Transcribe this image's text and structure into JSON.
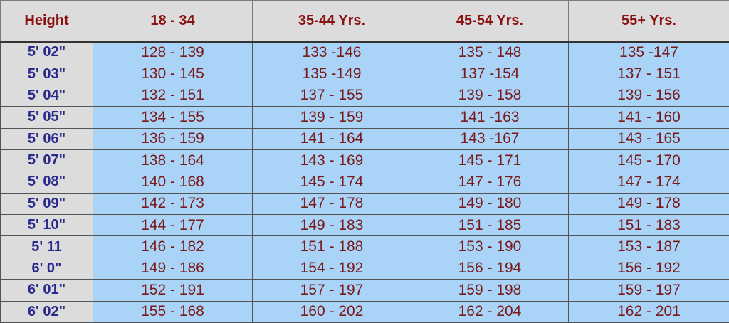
{
  "header": [
    "Height",
    "18 - 34",
    "35-44 Yrs.",
    "45-54 Yrs.",
    "55+ Yrs."
  ],
  "rows": [
    [
      "5' 02\"",
      "128 - 139",
      "133 -146",
      "135 - 148",
      "135 -147"
    ],
    [
      "5' 03\"",
      "130 - 145",
      "135 -149",
      "137 -154",
      "137 - 151"
    ],
    [
      "5' 04\"",
      "132 - 151",
      "137 - 155",
      "139 - 158",
      "139 - 156"
    ],
    [
      "5' 05\"",
      "134 - 155",
      "139 - 159",
      "141 -163",
      "141 - 160"
    ],
    [
      "5' 06\"",
      "136 - 159",
      "141 - 164",
      "143 -167",
      "143 - 165"
    ],
    [
      "5' 07\"",
      "138 - 164",
      "143 - 169",
      "145 - 171",
      "145 - 170"
    ],
    [
      "5' 08\"",
      "140 - 168",
      "145 - 174",
      "147 - 176",
      "147 - 174"
    ],
    [
      "5' 09\"",
      "142 - 173",
      "147 - 178",
      "149 - 180",
      "149 - 178"
    ],
    [
      "5' 10\"",
      "144 - 177",
      "149 - 183",
      "151 - 185",
      "151 - 183"
    ],
    [
      "5' 11",
      "146 - 182",
      "151 - 188",
      "153 - 190",
      "153 - 187"
    ],
    [
      "6' 0\"",
      "149 - 186",
      "154 - 192",
      "156 - 194",
      "156 - 192"
    ],
    [
      "6' 01\"",
      "152 - 191",
      "157 - 197",
      "159 - 198",
      "159 - 197"
    ],
    [
      "6' 02\"",
      "155 - 168",
      "160 - 202",
      "162 - 204",
      "162 - 201"
    ]
  ],
  "colors": {
    "header_bg": "#dcdcdc",
    "header_text": "#8b1010",
    "height_text": "#2a2a8c",
    "value_bg": "#a9d4f8",
    "value_text": "#7a1a1a"
  }
}
